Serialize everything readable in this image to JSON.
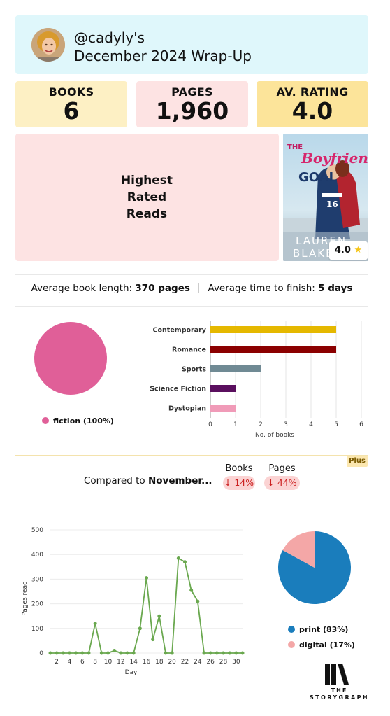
{
  "header": {
    "handle": "@cadyly's",
    "subtitle": "December 2024 Wrap-Up"
  },
  "stats": [
    {
      "label": "BOOKS",
      "value": "6"
    },
    {
      "label": "PAGES",
      "value": "1,960"
    },
    {
      "label": "AV. RATING",
      "value": "4.0"
    }
  ],
  "highest_rated": {
    "label_line1": "Highest",
    "label_line2": "Rated",
    "label_line3": "Reads",
    "book": {
      "title_word1": "THE",
      "title_word2": "Boyfriend",
      "title_word3": "GOAL",
      "author_line1": "LAUREN",
      "author_line2": "BLAKELY",
      "rating": "4.0"
    }
  },
  "averages": {
    "length_label": "Average book length:",
    "length_value": "370 pages",
    "time_label": "Average time to finish:",
    "time_value": "5 days"
  },
  "fiction_pie": {
    "legend": "fiction (100%)",
    "color": "#e05f98"
  },
  "genre_chart": {
    "chart_data": {
      "type": "bar",
      "orientation": "horizontal",
      "categories": [
        "Contemporary",
        "Romance",
        "Sports",
        "Science Fiction",
        "Dystopian"
      ],
      "values": [
        5,
        5,
        2,
        1,
        1
      ],
      "colors": [
        "#e5b800",
        "#8b0000",
        "#708a94",
        "#5a0f5e",
        "#f09bb8"
      ],
      "xlabel": "No. of books",
      "xlim": [
        0,
        6
      ],
      "xticks": [
        "0",
        "1",
        "2",
        "3",
        "4",
        "5",
        "6"
      ]
    }
  },
  "comparison": {
    "plus_badge": "Plus",
    "label_prefix": "Compared to ",
    "label_month": "November...",
    "books_header": "Books",
    "pages_header": "Pages",
    "books_change": "↓ 14%",
    "pages_change": "↓ 44%"
  },
  "pages_chart": {
    "chart_data": {
      "type": "line",
      "xlabel": "Day",
      "ylabel": "Pages read",
      "ylim": [
        0,
        500
      ],
      "yticks": [
        "0",
        "100",
        "200",
        "300",
        "400",
        "500"
      ],
      "xticks": [
        "2",
        "4",
        "6",
        "8",
        "10",
        "12",
        "14",
        "16",
        "18",
        "20",
        "22",
        "24",
        "26",
        "28",
        "30"
      ],
      "x": [
        1,
        2,
        3,
        4,
        5,
        6,
        7,
        8,
        9,
        10,
        11,
        12,
        13,
        14,
        15,
        16,
        17,
        18,
        19,
        20,
        21,
        22,
        23,
        24,
        25,
        26,
        27,
        28,
        29,
        30,
        31
      ],
      "y": [
        0,
        0,
        0,
        0,
        0,
        0,
        0,
        120,
        0,
        0,
        10,
        0,
        0,
        0,
        100,
        305,
        55,
        150,
        0,
        0,
        385,
        370,
        255,
        210,
        0,
        0,
        0,
        0,
        0,
        0,
        0
      ],
      "color": "#6aa84f"
    }
  },
  "format_pie": {
    "chart_data": {
      "type": "pie",
      "labels": [
        "print (83%)",
        "digital (17%)"
      ],
      "values": [
        83,
        17
      ],
      "colors": [
        "#1a7dbc",
        "#f4a7a7"
      ]
    }
  },
  "logo": {
    "line1": "THE",
    "line2": "STORYGRAPH"
  }
}
